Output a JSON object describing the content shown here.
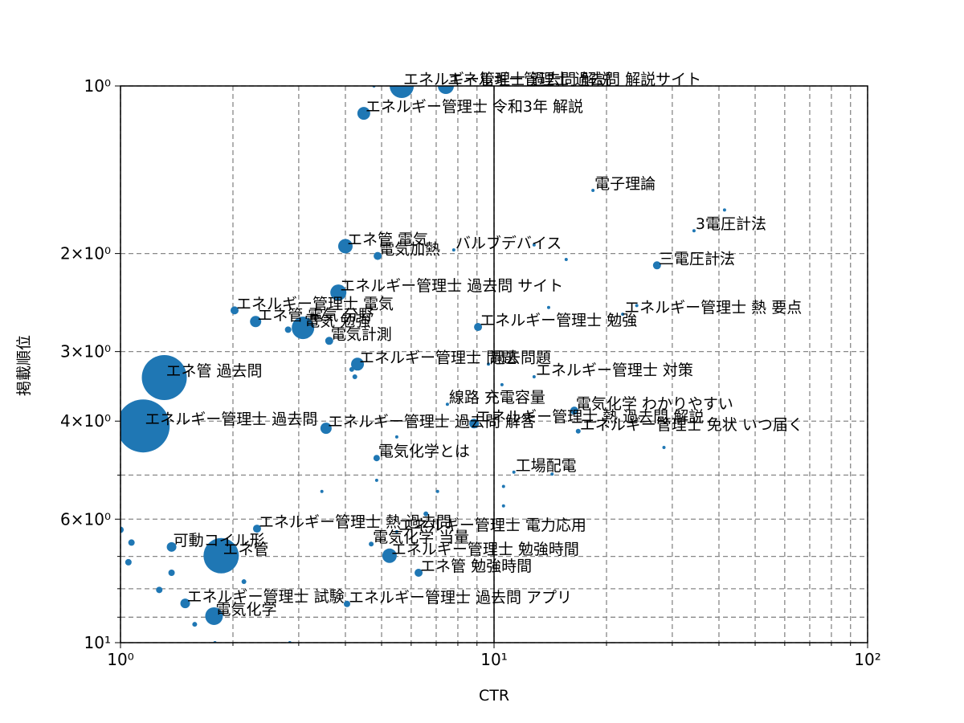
{
  "chart_data": {
    "type": "scatter",
    "x_label": "CTR",
    "y_label": "掲載順位",
    "xlog": true,
    "ylog": true,
    "y_inverted": true,
    "grid": true,
    "xlim": [
      1,
      100
    ],
    "ylim": [
      1,
      10
    ],
    "xticks": [
      {
        "value": 1,
        "label": "10⁰"
      },
      {
        "value": 10,
        "label": "10¹"
      },
      {
        "value": 100,
        "label": "10²"
      }
    ],
    "xminorticks": [
      2,
      3,
      4,
      5,
      6,
      7,
      8,
      9,
      20,
      30,
      40,
      50,
      60,
      70,
      80,
      90
    ],
    "yticks": [
      {
        "value": 1,
        "label": "10⁰"
      },
      {
        "value": 2,
        "label": "2×10⁰"
      },
      {
        "value": 3,
        "label": "3×10⁰"
      },
      {
        "value": 4,
        "label": "4×10⁰"
      },
      {
        "value": 6,
        "label": "6×10⁰"
      },
      {
        "value": 10,
        "label": "10¹"
      }
    ],
    "yminorticks": [
      5,
      7,
      8,
      9
    ],
    "vline": 10,
    "color": "#1f77b4",
    "series": [
      {
        "x": [
          4.48,
          5.66,
          7.43,
          18.4,
          34.3,
          27.3,
          4.0,
          4.88,
          7.8,
          3.83,
          2.02,
          2.3,
          3.08,
          3.62,
          9.06,
          22.1,
          4.31,
          9.66,
          1.31,
          12.8,
          1.15,
          3.55,
          8.84,
          7.5,
          16.4,
          16.8,
          4.85,
          11.3,
          2.32,
          5.49,
          1.37,
          1.86,
          5.25,
          4.69,
          6.28,
          1.49,
          4.04,
          1.78,
          1.0,
          1.07,
          1.05,
          1.27,
          1.37,
          1.58,
          2.14,
          1.79,
          2.84,
          3.46,
          4.85,
          4.77,
          4.16,
          4.24,
          5.49,
          7.06,
          10.6,
          10.6,
          12.8,
          15.6,
          41.4,
          28.5,
          14.3,
          14.0,
          24.1,
          2.81,
          10.5,
          6.57
        ],
        "values": [
          1.12,
          1.0,
          1.0,
          1.54,
          1.82,
          2.1,
          1.94,
          2.02,
          1.97,
          2.35,
          2.53,
          2.65,
          2.72,
          2.87,
          2.71,
          2.57,
          3.16,
          3.16,
          3.34,
          3.33,
          4.08,
          4.12,
          4.04,
          3.73,
          3.83,
          4.17,
          4.66,
          4.94,
          6.24,
          6.32,
          6.73,
          6.98,
          6.98,
          6.65,
          7.49,
          8.5,
          8.52,
          8.96,
          6.27,
          6.61,
          7.17,
          8.04,
          7.49,
          9.27,
          7.77,
          10.0,
          10.0,
          5.35,
          5.11,
          1.0,
          3.23,
          3.33,
          4.27,
          5.35,
          5.24,
          5.68,
          1.93,
          2.05,
          1.67,
          4.46,
          4.98,
          2.5,
          2.48,
          2.74,
          3.44,
          5.87
        ],
        "sizes": [
          64,
          225,
          100,
          4,
          4,
          25,
          81,
          25,
          4,
          100,
          25,
          49,
          196,
          25,
          25,
          4,
          64,
          4,
          784,
          4,
          1089,
          49,
          36,
          4,
          25,
          9,
          16,
          4,
          25,
          4,
          36,
          484,
          81,
          9,
          25,
          36,
          16,
          121,
          16,
          16,
          16,
          16,
          16,
          9,
          9,
          4,
          4,
          4,
          4,
          4,
          9,
          9,
          4,
          4,
          4,
          4,
          4,
          4,
          4,
          4,
          4,
          4,
          4,
          16,
          4,
          9
        ],
        "labels": [
          "エネルギー管理士 令和3年 解説",
          "エネルギー管理士 過去問 解説",
          "エネルギー管理士 過去問 解説サイト",
          "電子理論",
          "3電圧計法",
          "三電圧計法",
          "エネ管 電気",
          "電気加熱",
          "バルブデバイス",
          "エネルギー管理士 過去問 サイト",
          "エネルギー管理士 電気",
          "エネ管 電気 分野",
          "電気 勉強",
          "電気計測",
          "エネルギー管理士 勉強",
          "エネルギー管理士 熱 要点",
          "エネルギー管理士 問題",
          "過去問題",
          "エネ管 過去問",
          "エネルギー管理士 対策",
          "エネルギー管理士 過去問",
          "エネルギー管理士 過去問 解答",
          "エネルギー管理士 熱 過去問 解説",
          "線路 充電容量",
          "電気化学 わかりやすい",
          "エネルギー管理士 免状 いつ届く",
          "電気化学とは",
          "工場配電",
          "エネルギー管理士 熱 過去問",
          "エネルギー管理士 電力応用",
          "可動コイル形",
          "エネ管",
          "エネルギー管理士 勉強時間",
          "電気化学 当量",
          "エネ管 勉強時間",
          "エネルギー管理士 試験",
          "エネルギー管理士 過去問 アプリ",
          "電気化学",
          null,
          null,
          null,
          null,
          null,
          null,
          null,
          null,
          null,
          null,
          null,
          null,
          null,
          null,
          null,
          null,
          null,
          null,
          null,
          null,
          null,
          null,
          null,
          null,
          null,
          null,
          null,
          null
        ]
      }
    ]
  }
}
